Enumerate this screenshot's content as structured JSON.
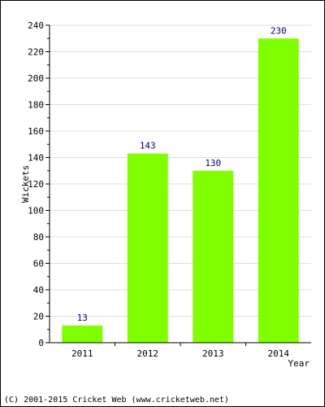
{
  "chart_data": {
    "type": "bar",
    "categories": [
      "2011",
      "2012",
      "2013",
      "2014"
    ],
    "values": [
      13,
      143,
      130,
      230
    ],
    "data_labels": [
      "13",
      "143",
      "130",
      "230"
    ],
    "xlabel": "Year",
    "ylabel": "Wickets",
    "ylim": [
      0,
      240
    ],
    "y_ticks": [
      "0",
      "20",
      "40",
      "60",
      "80",
      "100",
      "120",
      "140",
      "160",
      "180",
      "200",
      "220",
      "240"
    ],
    "grid": true,
    "legend": "none",
    "bar_color": "#80ff00",
    "label_color": "#000080"
  },
  "footer": "(C) 2001-2015 Cricket Web (www.cricketweb.net)"
}
